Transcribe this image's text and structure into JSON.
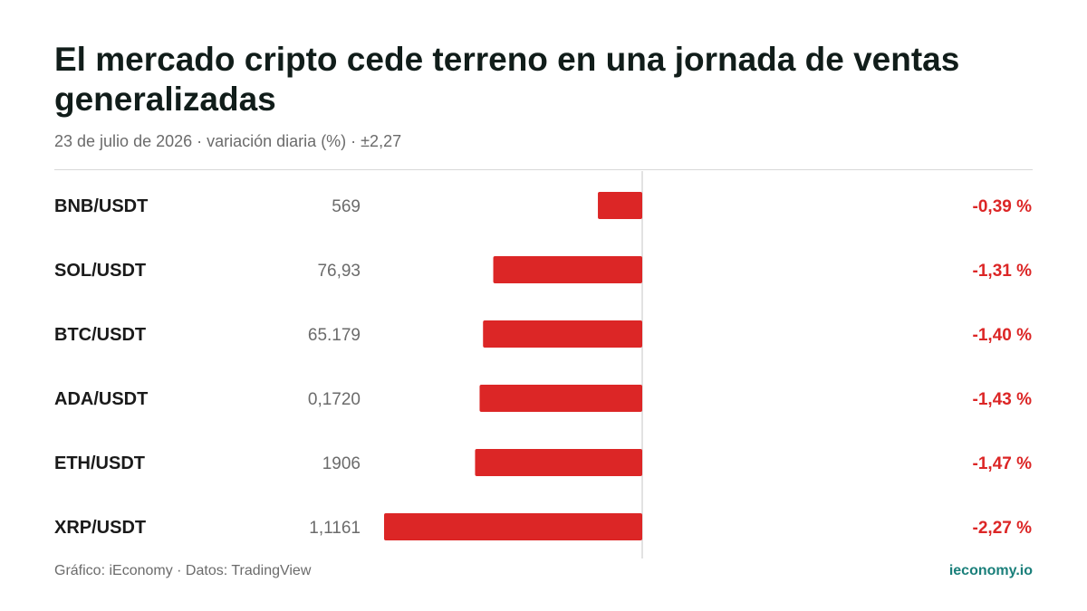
{
  "title": "El mercado cripto cede terreno en una jornada de ventas generalizadas",
  "subtitle": "23 de julio de 2026 · variación diaria (%) · ±2,27",
  "footer": {
    "source": "Gráfico: iEconomy · Datos: TradingView",
    "brand": "ieconomy.io"
  },
  "colors": {
    "negative": "#dc2626",
    "label": "#1a1a1a",
    "price": "#6b6b6b",
    "axis": "#d9d9d9",
    "brand": "#1a7f7a"
  },
  "chart_data": {
    "type": "bar",
    "orientation": "horizontal",
    "scale_range": [
      -2.27,
      2.27
    ],
    "categories": [
      "BNB/USDT",
      "SOL/USDT",
      "BTC/USDT",
      "ADA/USDT",
      "ETH/USDT",
      "XRP/USDT"
    ],
    "prices": [
      "569",
      "76,93",
      "65.179",
      "0,1720",
      "1906",
      "1,1161"
    ],
    "values": [
      -0.39,
      -1.31,
      -1.4,
      -1.43,
      -1.47,
      -2.27
    ],
    "value_labels": [
      "-0,39 %",
      "-1,31 %",
      "-1,40 %",
      "-1,43 %",
      "-1,47 %",
      "-2,27 %"
    ]
  }
}
